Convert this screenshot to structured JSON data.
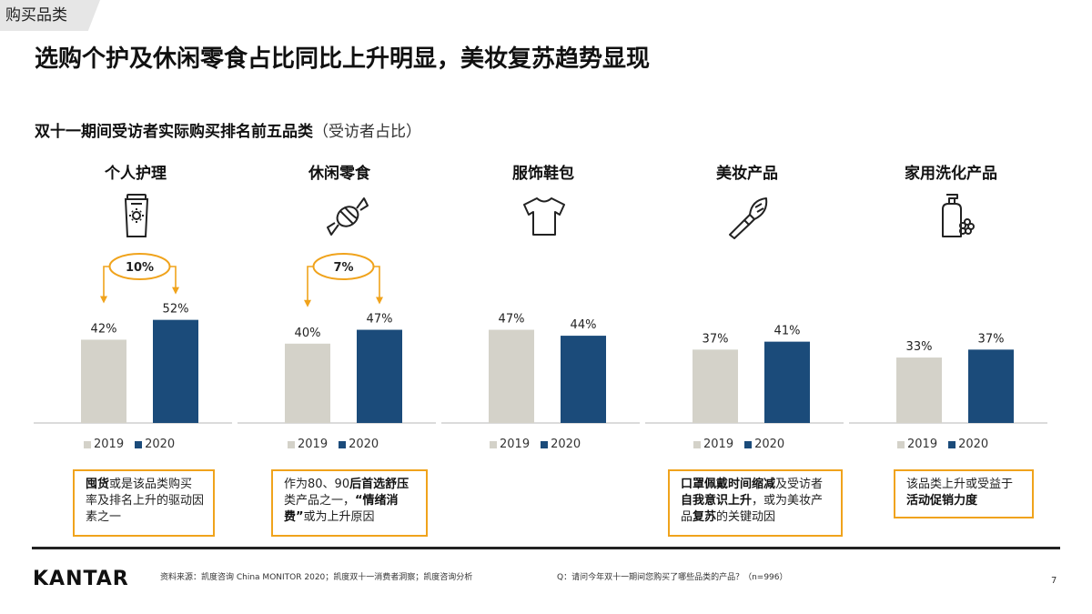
{
  "section_tag": "购买品类",
  "page_title": "选购个护及休闲零食占比同比上升明显，美妆复苏趋势显现",
  "subtitle_main": "双十一期间受访者实际购买排名前五品类",
  "subtitle_paren": "（受访者占比）",
  "colors": {
    "y2019": "#d4d2c9",
    "y2020": "#1b4b7a",
    "accent": "#f0a31c",
    "axis": "#cfcfcf"
  },
  "chart_data": {
    "type": "bar",
    "years": [
      "2019",
      "2020"
    ],
    "panels": [
      {
        "category": "个人护理",
        "icon": "sunscreen-tube-icon",
        "values": [
          42,
          52
        ],
        "labels": [
          "42%",
          "52%"
        ],
        "change": "10%"
      },
      {
        "category": "休闲零食",
        "icon": "candy-icon",
        "values": [
          40,
          47
        ],
        "labels": [
          "40%",
          "47%"
        ],
        "change": "7%"
      },
      {
        "category": "服饰鞋包",
        "icon": "tshirt-icon",
        "values": [
          47,
          44
        ],
        "labels": [
          "47%",
          "44%"
        ],
        "change": null
      },
      {
        "category": "美妆产品",
        "icon": "makeup-brush-icon",
        "values": [
          37,
          41
        ],
        "labels": [
          "37%",
          "41%"
        ],
        "change": null
      },
      {
        "category": "家用洗化产品",
        "icon": "detergent-bottle-icon",
        "values": [
          33,
          37
        ],
        "labels": [
          "33%",
          "37%"
        ],
        "change": null
      }
    ],
    "legend": [
      "2019",
      "2020"
    ]
  },
  "callouts": {
    "c1": {
      "b1": "囤货",
      "t1": "或是该品类购买率及排名上升的驱动因素之一"
    },
    "c2": {
      "t1": "作为80、90",
      "b1": "后首选舒压",
      "t2": "类产品之一，",
      "b2": "“情绪消费”",
      "t3": "或为上升原因"
    },
    "c4": {
      "b1": "口罩佩戴时间缩减",
      "t1": "及受访者",
      "b2": "自我意识上升",
      "t2": "，或为美妆产品",
      "b3": "复苏",
      "t3": "的关键动因"
    },
    "c5": {
      "t1": "该品类上升或受益于",
      "b1": "活动促销力度"
    }
  },
  "footer": {
    "logo": "KANTAR",
    "source": "资料来源：凯度咨询 China MONITOR 2020；凯度双十一消费者洞察；凯度咨询分析",
    "question": "Q：请问今年双十一期间您购买了哪些品类的产品？（n=996）",
    "page_number": "7"
  }
}
